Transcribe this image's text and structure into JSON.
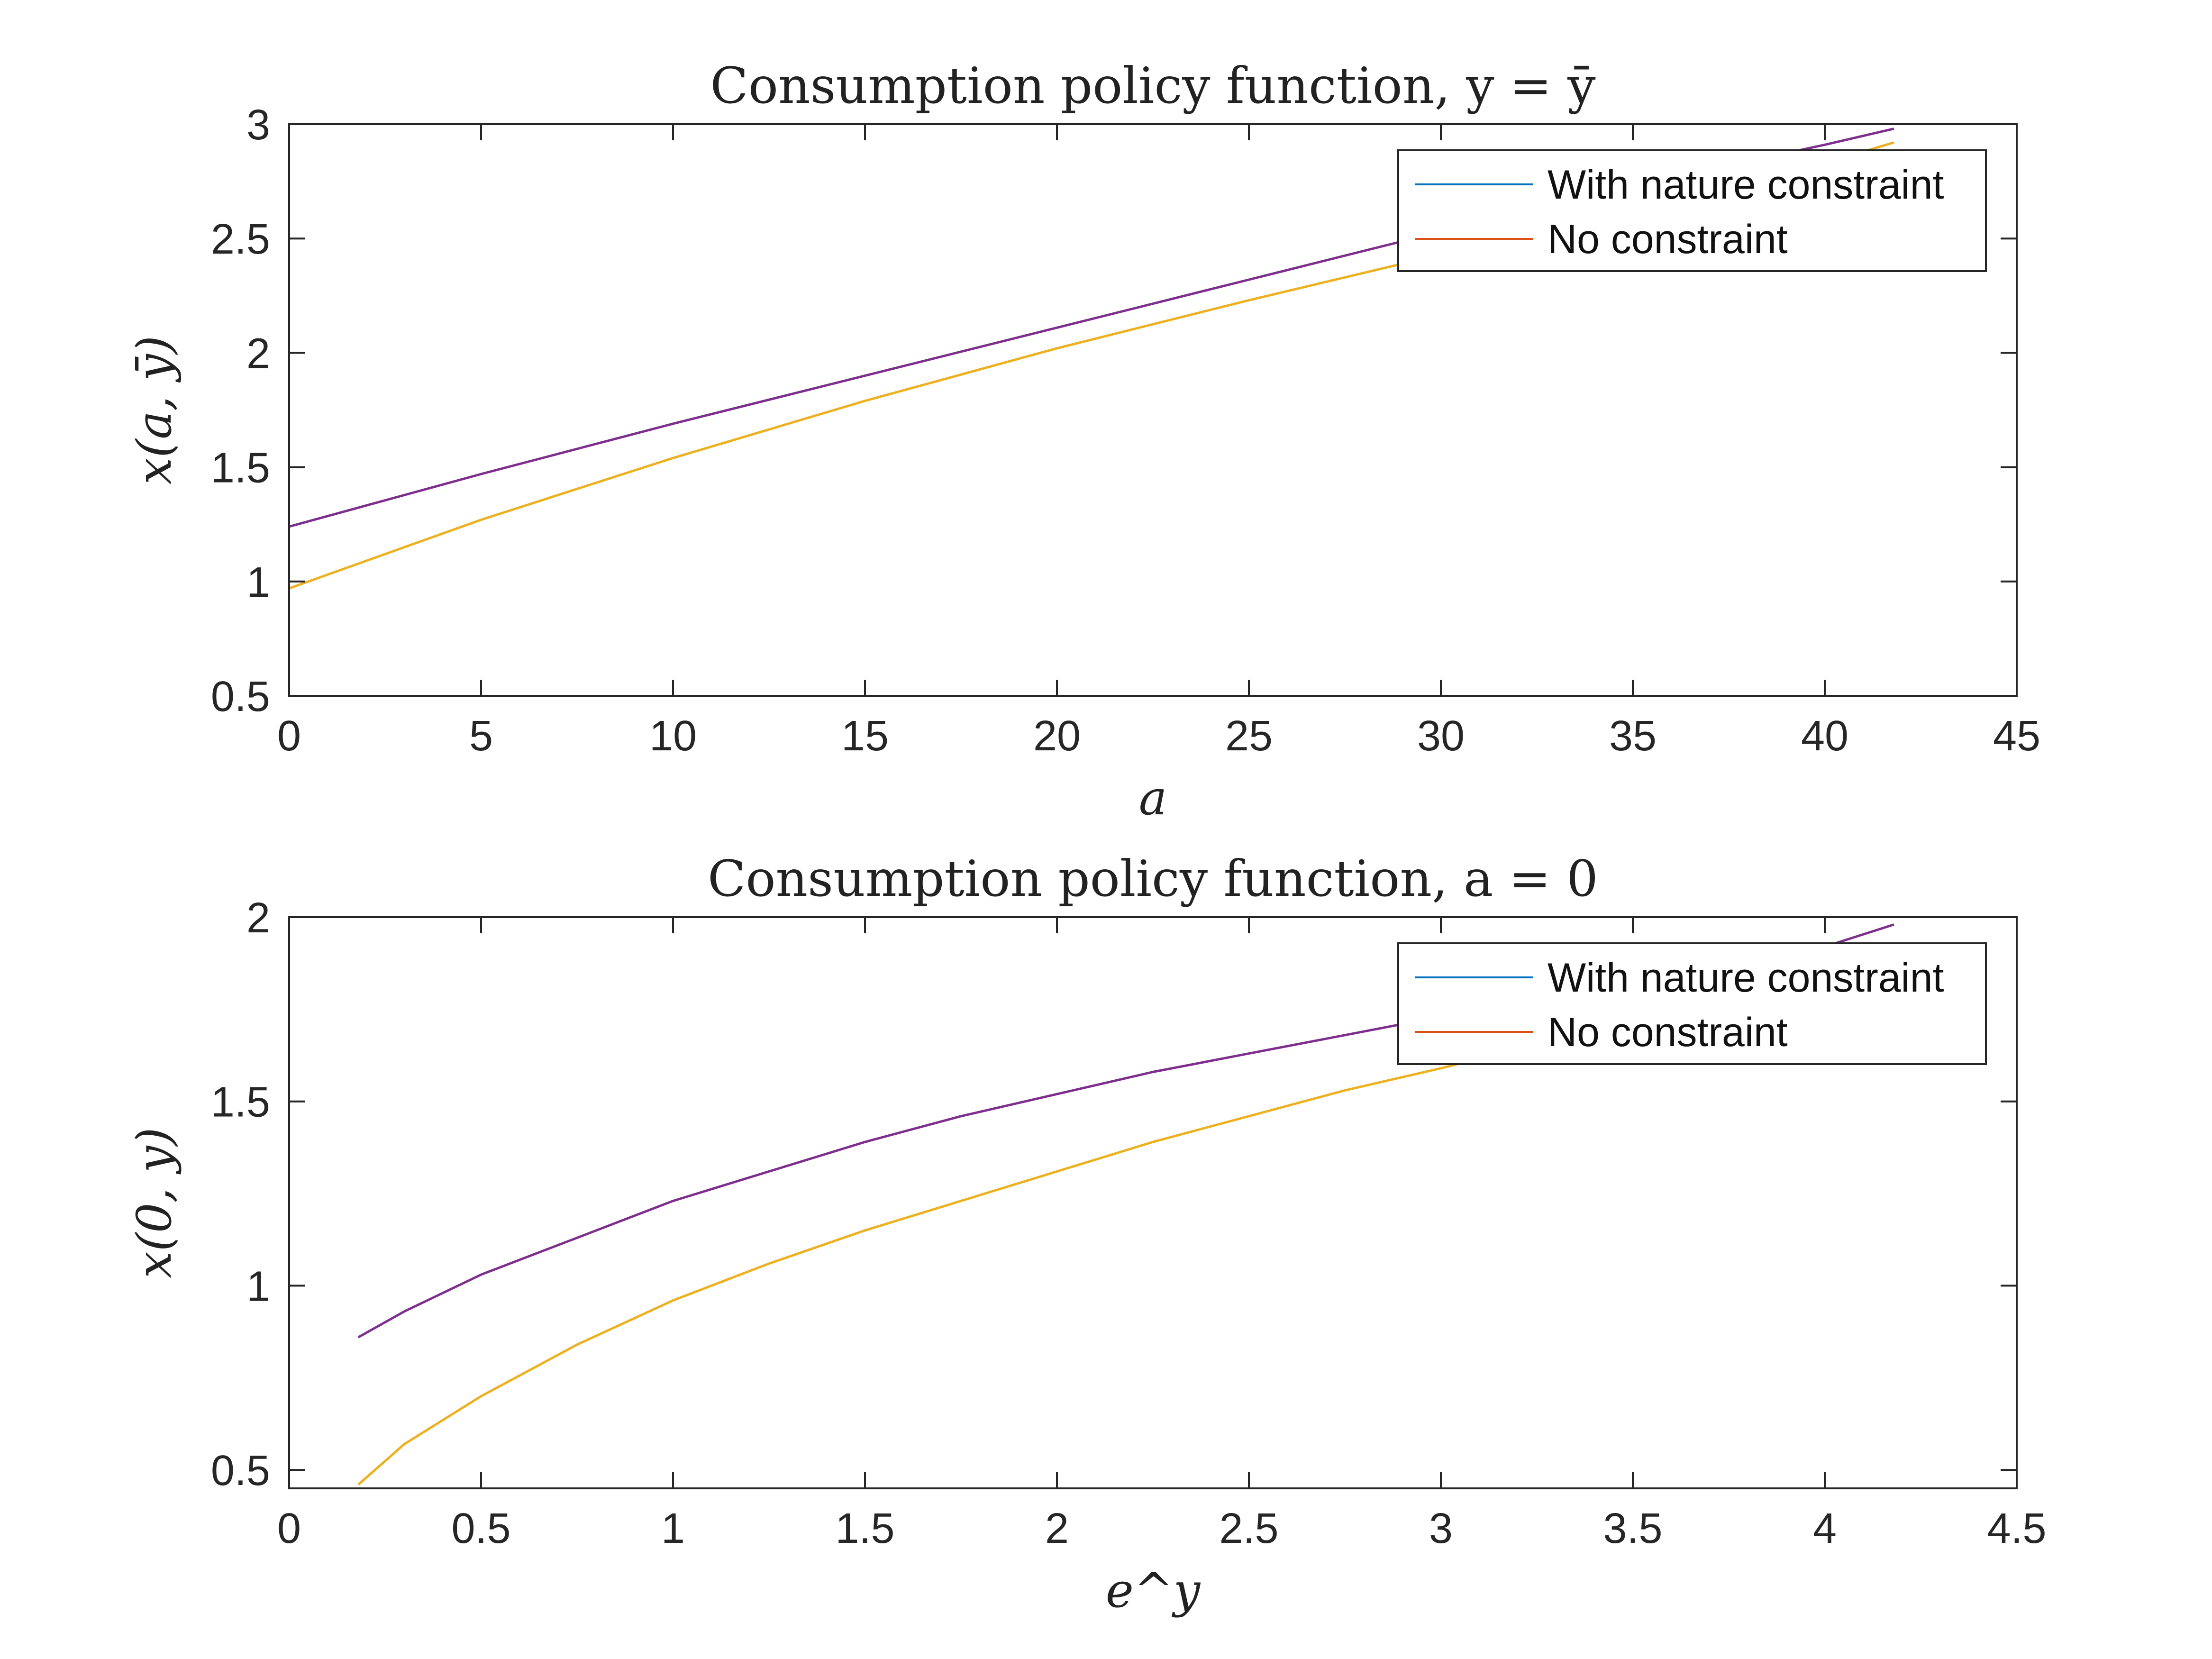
{
  "chart_data": [
    {
      "type": "line",
      "title": "Consumption policy function, y = ȳ",
      "xlabel": "a",
      "ylabel": "x(a, ȳ)",
      "xlim": [
        0,
        45
      ],
      "ylim": [
        0.5,
        3
      ],
      "xticks": [
        "0",
        "5",
        "10",
        "15",
        "20",
        "25",
        "30",
        "35",
        "40",
        "45"
      ],
      "yticks": [
        "0.5",
        "1",
        "1.5",
        "2",
        "2.5",
        "3"
      ],
      "grid": false,
      "legend_position": "top-right",
      "legend": [
        {
          "label": "With nature constraint",
          "color": "#0072BD"
        },
        {
          "label": "No constraint",
          "color": "#D95319"
        }
      ],
      "series": [
        {
          "color": "#7E2F8E",
          "x": [
            0,
            5,
            10,
            15,
            20,
            25,
            30,
            35,
            40,
            41.8
          ],
          "y": [
            1.24,
            1.47,
            1.69,
            1.9,
            2.11,
            2.32,
            2.53,
            2.73,
            2.91,
            2.98
          ]
        },
        {
          "color": "#EDB120",
          "x": [
            0,
            2,
            5,
            10,
            15,
            20,
            25,
            30,
            35,
            40,
            41.8
          ],
          "y": [
            0.97,
            1.09,
            1.27,
            1.54,
            1.79,
            2.02,
            2.23,
            2.43,
            2.61,
            2.83,
            2.92
          ]
        }
      ]
    },
    {
      "type": "line",
      "title": "Consumption policy function, a = 0",
      "xlabel": "e^y",
      "ylabel": "x(0, y)",
      "xlim": [
        0,
        4.5
      ],
      "ylim": [
        0.45,
        2
      ],
      "xticks": [
        "0",
        "0.5",
        "1",
        "1.5",
        "2",
        "2.5",
        "3",
        "3.5",
        "4",
        "4.5"
      ],
      "yticks": [
        "0.5",
        "1",
        "1.5",
        "2"
      ],
      "grid": false,
      "legend_position": "top-right",
      "legend": [
        {
          "label": "With nature constraint",
          "color": "#0072BD"
        },
        {
          "label": "No constraint",
          "color": "#D95319"
        }
      ],
      "series": [
        {
          "color": "#7E2F8E",
          "x": [
            0.18,
            0.3,
            0.5,
            0.75,
            1.0,
            1.25,
            1.5,
            1.75,
            2.0,
            2.25,
            2.5,
            2.75,
            3.0,
            3.5,
            4.0,
            4.18
          ],
          "y": [
            0.86,
            0.93,
            1.03,
            1.13,
            1.23,
            1.31,
            1.39,
            1.46,
            1.52,
            1.58,
            1.63,
            1.68,
            1.73,
            1.82,
            1.92,
            1.98
          ]
        },
        {
          "color": "#EDB120",
          "x": [
            0.18,
            0.3,
            0.5,
            0.75,
            1.0,
            1.25,
            1.5,
            1.75,
            2.0,
            2.25,
            2.5,
            2.75,
            3.0,
            3.5,
            4.0,
            4.18
          ],
          "y": [
            0.46,
            0.57,
            0.7,
            0.84,
            0.96,
            1.06,
            1.15,
            1.23,
            1.31,
            1.39,
            1.46,
            1.53,
            1.59,
            1.72,
            1.84,
            1.9
          ]
        }
      ]
    }
  ]
}
